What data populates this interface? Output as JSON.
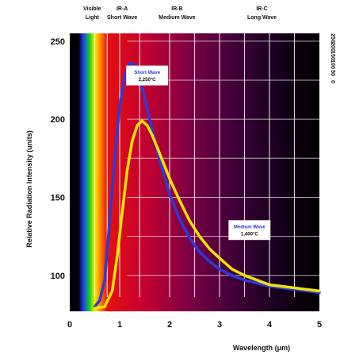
{
  "chart_data": {
    "type": "line",
    "title": "",
    "xlabel": "Wavelength (μm)",
    "ylabel": "Relative Radiation Intensity (units)",
    "xlim": [
      0,
      5
    ],
    "ylim": [
      77,
      255
    ],
    "x_ticks": [
      "0",
      "1",
      "2",
      "3",
      "4",
      "5"
    ],
    "y_ticks": [
      "250",
      "200",
      "150",
      "100"
    ],
    "y_ticks_mirrored": [
      "250",
      "200",
      "150",
      "100",
      "50",
      "0"
    ],
    "grid": true,
    "regions": [
      {
        "line1": "Visible",
        "line2": "Light",
        "x_from": 0.4,
        "x_to": 0.75
      },
      {
        "line1": "IR-A",
        "line2": "Short Wave",
        "x_from": 0.75,
        "x_to": 1.4
      },
      {
        "line1": "IR-B",
        "line2": "Medium Wave",
        "x_from": 1.4,
        "x_to": 3.0
      },
      {
        "line1": "IR-C",
        "line2": "Long Wave",
        "x_from": 3.0,
        "x_to": 5.0
      }
    ],
    "series": [
      {
        "name": "Short Wave 2,250°C",
        "color": "#2b3bd6",
        "x": [
          0.5,
          0.6,
          0.7,
          0.8,
          0.9,
          1.0,
          1.1,
          1.2,
          1.3,
          1.4,
          1.5,
          1.6,
          1.7,
          1.8,
          1.9,
          2.0,
          2.2,
          2.4,
          2.6,
          2.8,
          3.0,
          3.25,
          3.5,
          3.75,
          4.0,
          4.25,
          4.5,
          4.75,
          5.0
        ],
        "y": [
          80,
          84,
          97,
          135,
          175,
          208,
          227,
          236,
          235,
          227,
          214,
          200,
          187,
          174,
          163,
          152,
          136,
          124,
          115,
          109,
          104,
          100,
          97,
          95,
          93,
          92,
          91,
          90,
          89
        ]
      },
      {
        "name": "Medium Wave 1,400°C",
        "color": "#f2e400",
        "x": [
          0.5,
          0.7,
          0.85,
          0.95,
          1.05,
          1.15,
          1.25,
          1.35,
          1.45,
          1.55,
          1.65,
          1.75,
          1.85,
          2.0,
          2.2,
          2.4,
          2.6,
          2.8,
          3.0,
          3.25,
          3.5,
          3.75,
          4.0,
          4.25,
          4.5,
          4.75,
          5.0
        ],
        "y": [
          79,
          80,
          90,
          112,
          140,
          167,
          186,
          196,
          199,
          196,
          190,
          182,
          174,
          162,
          148,
          135,
          125,
          117,
          111,
          104,
          100,
          97,
          94,
          93,
          92,
          91,
          90
        ]
      }
    ],
    "annotations": [
      {
        "line1": "Short Wave",
        "line2": "2,250°C",
        "x": 1.55,
        "y": 227
      },
      {
        "line1": "Medium Wave",
        "line2": "1,400°C",
        "x": 3.6,
        "y": 128
      }
    ]
  }
}
